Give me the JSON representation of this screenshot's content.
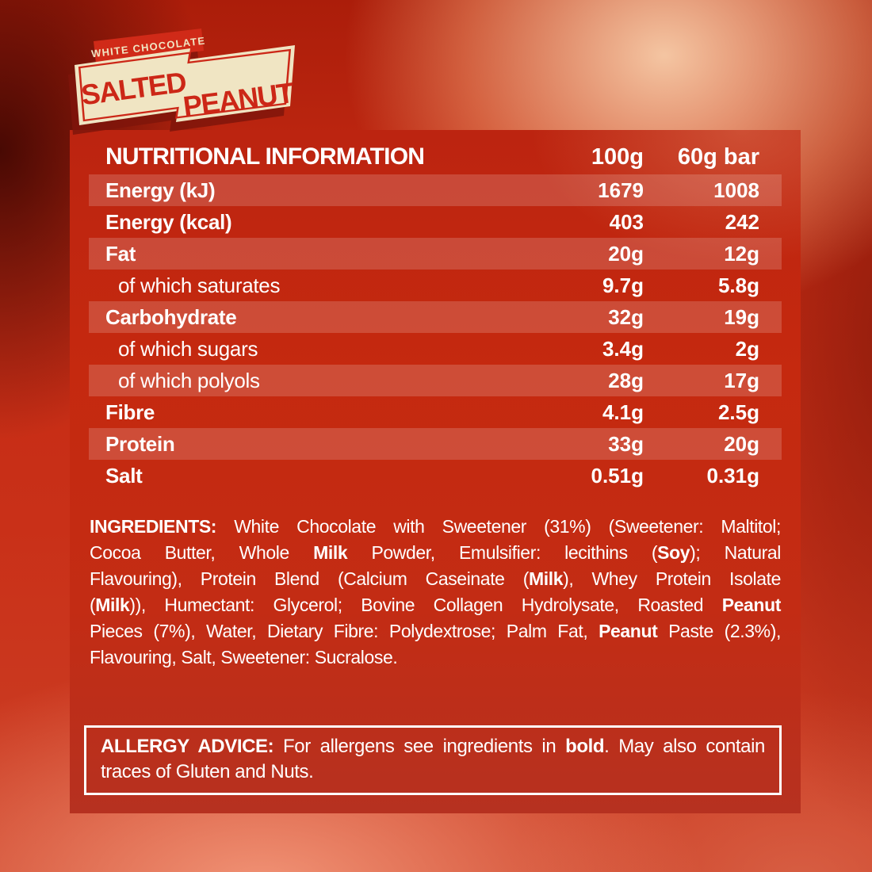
{
  "logo": {
    "ribbon_text": "WHITE CHOCOLATE",
    "word1": "SALTED",
    "word2": "PEANUT"
  },
  "table": {
    "title": "NUTRITIONAL INFORMATION",
    "col_100g": "100g",
    "col_60g": "60g bar",
    "rows": [
      {
        "label": "Energy (kJ)",
        "indent": false,
        "per100": "1679",
        "per60": "1008",
        "shaded": true
      },
      {
        "label": "Energy (kcal)",
        "indent": false,
        "per100": "403",
        "per60": "242",
        "shaded": false
      },
      {
        "label": "Fat",
        "indent": false,
        "per100": "20g",
        "per60": "12g",
        "shaded": true
      },
      {
        "label": "of which saturates",
        "indent": true,
        "per100": "9.7g",
        "per60": "5.8g",
        "shaded": false
      },
      {
        "label": "Carbohydrate",
        "indent": false,
        "per100": "32g",
        "per60": "19g",
        "shaded": true
      },
      {
        "label": "of which sugars",
        "indent": true,
        "per100": "3.4g",
        "per60": "2g",
        "shaded": false
      },
      {
        "label": "of which polyols",
        "indent": true,
        "per100": "28g",
        "per60": "17g",
        "shaded": true
      },
      {
        "label": "Fibre",
        "indent": false,
        "per100": "4.1g",
        "per60": "2.5g",
        "shaded": false
      },
      {
        "label": "Protein",
        "indent": false,
        "per100": "33g",
        "per60": "20g",
        "shaded": true
      },
      {
        "label": "Salt",
        "indent": false,
        "per100": "0.51g",
        "per60": "0.31g",
        "shaded": false
      }
    ]
  },
  "ingredients": {
    "lines": [
      {
        "justify": true,
        "segs": [
          {
            "t": "INGREDIENTS: ",
            "b": 1
          },
          {
            "t": "White Chocolate with Sweetener (31%) (Sweetener: Maltitol;",
            "b": 0
          }
        ]
      },
      {
        "justify": true,
        "segs": [
          {
            "t": "Cocoa Butter, Whole ",
            "b": 0
          },
          {
            "t": "Milk",
            "b": 1
          },
          {
            "t": " Powder, Emulsifier: lecithins (",
            "b": 0
          },
          {
            "t": "Soy",
            "b": 1
          },
          {
            "t": "); Natural",
            "b": 0
          }
        ]
      },
      {
        "justify": true,
        "segs": [
          {
            "t": "Flavouring), Protein Blend (Calcium Caseinate (",
            "b": 0
          },
          {
            "t": "Milk",
            "b": 1
          },
          {
            "t": "), Whey Protein Isolate",
            "b": 0
          }
        ]
      },
      {
        "justify": true,
        "segs": [
          {
            "t": "(",
            "b": 0
          },
          {
            "t": "Milk",
            "b": 1
          },
          {
            "t": ")), Humectant: Glycerol; Bovine Collagen Hydrolysate, Roasted ",
            "b": 0
          },
          {
            "t": "Peanut",
            "b": 1
          }
        ]
      },
      {
        "justify": true,
        "segs": [
          {
            "t": "Pieces (7%), Water, Dietary Fibre: Polydextrose; Palm Fat, ",
            "b": 0
          },
          {
            "t": "Peanut",
            "b": 1
          },
          {
            "t": " Paste (2.3%),",
            "b": 0
          }
        ]
      },
      {
        "justify": false,
        "segs": [
          {
            "t": "Flavouring, Salt, Sweetener: Sucralose.",
            "b": 0
          }
        ]
      }
    ]
  },
  "allergy": {
    "lines": [
      {
        "justify": true,
        "segs": [
          {
            "t": "ALLERGY ADVICE: ",
            "b": 1
          },
          {
            "t": "For allergens see ingredients in ",
            "b": 0
          },
          {
            "t": "bold",
            "b": 1
          },
          {
            "t": ". May also contain",
            "b": 0
          }
        ]
      },
      {
        "justify": false,
        "segs": [
          {
            "t": "traces of Gluten and Nuts.",
            "b": 0
          }
        ]
      }
    ]
  },
  "colors": {
    "background_red": "#c5301b",
    "panel_red": "#c32c14",
    "row_band": "rgba(255,255,255,0.17)",
    "cream": "#f0e5c3",
    "logo_red": "#cc2717",
    "logo_shadow": "#7f150b",
    "text_white": "#ffffff",
    "glow_peach": "#f2c19c"
  }
}
